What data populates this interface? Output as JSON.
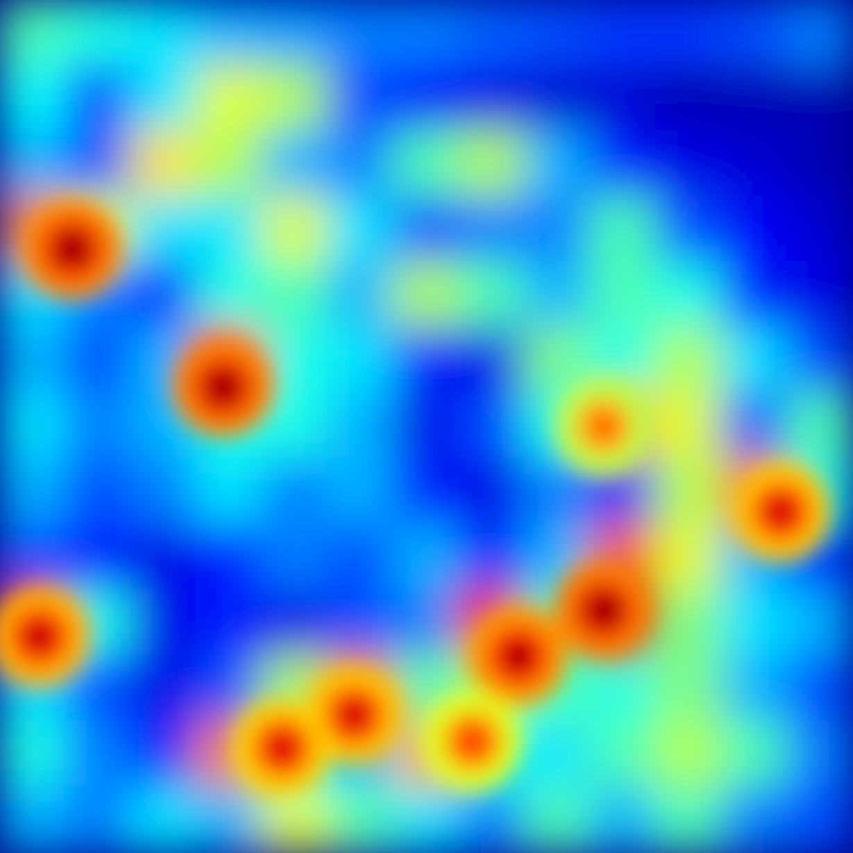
{
  "chart_data": {
    "type": "heatmap",
    "colormap": "jet",
    "vmin": 0.0,
    "vmax": 1.0,
    "rows": 13,
    "cols": 13,
    "interpolation": "bilinear",
    "grid": false,
    "legend": "none",
    "values": [
      [
        0.45,
        0.4,
        0.35,
        0.3,
        0.28,
        0.25,
        0.25,
        0.22,
        0.2,
        0.18,
        0.18,
        0.2,
        0.25
      ],
      [
        0.38,
        0.2,
        0.35,
        0.6,
        0.55,
        0.2,
        0.12,
        0.1,
        0.08,
        0.08,
        0.05,
        0.05,
        0.05
      ],
      [
        0.3,
        0.2,
        0.65,
        0.55,
        0.3,
        0.25,
        0.45,
        0.55,
        0.3,
        0.15,
        0.1,
        0.08,
        0.05
      ],
      [
        0.75,
        0.6,
        0.35,
        0.35,
        0.6,
        0.35,
        0.2,
        0.25,
        0.25,
        0.45,
        0.2,
        0.12,
        0.08
      ],
      [
        0.35,
        0.25,
        0.15,
        0.4,
        0.45,
        0.3,
        0.55,
        0.45,
        0.3,
        0.45,
        0.4,
        0.15,
        0.1
      ],
      [
        0.3,
        0.2,
        0.3,
        0.85,
        0.4,
        0.35,
        0.15,
        0.1,
        0.5,
        0.4,
        0.55,
        0.35,
        0.2
      ],
      [
        0.35,
        0.25,
        0.3,
        0.4,
        0.4,
        0.3,
        0.1,
        0.2,
        0.4,
        0.7,
        0.6,
        0.2,
        0.45
      ],
      [
        0.3,
        0.2,
        0.25,
        0.35,
        0.25,
        0.3,
        0.15,
        0.1,
        0.25,
        0.15,
        0.55,
        0.75,
        0.4
      ],
      [
        0.2,
        0.15,
        0.1,
        0.15,
        0.25,
        0.2,
        0.3,
        0.15,
        0.3,
        0.8,
        0.6,
        0.3,
        0.15
      ],
      [
        0.8,
        0.4,
        0.1,
        0.15,
        0.1,
        0.2,
        0.25,
        0.85,
        0.45,
        0.95,
        0.5,
        0.35,
        0.3
      ],
      [
        0.35,
        0.2,
        0.1,
        0.2,
        0.55,
        0.75,
        0.45,
        0.55,
        0.45,
        0.4,
        0.5,
        0.3,
        0.2
      ],
      [
        0.4,
        0.25,
        0.15,
        0.75,
        0.4,
        0.3,
        0.7,
        0.4,
        0.35,
        0.45,
        0.55,
        0.45,
        0.25
      ],
      [
        0.3,
        0.25,
        0.35,
        0.3,
        0.6,
        0.45,
        0.35,
        0.25,
        0.45,
        0.3,
        0.45,
        0.25,
        0.2
      ]
    ],
    "hotspots": [
      {
        "row": 3.3,
        "col": 0.6,
        "value": 1.0
      },
      {
        "row": 5.4,
        "col": 2.9,
        "value": 1.0
      },
      {
        "row": 8.8,
        "col": 8.7,
        "value": 1.0
      },
      {
        "row": 9.5,
        "col": 7.4,
        "value": 0.98
      },
      {
        "row": 9.2,
        "col": 0.1,
        "value": 0.95
      },
      {
        "row": 10.4,
        "col": 4.9,
        "value": 0.93
      },
      {
        "row": 7.3,
        "col": 11.4,
        "value": 0.93
      },
      {
        "row": 10.9,
        "col": 3.8,
        "value": 0.92
      },
      {
        "row": 10.8,
        "col": 6.7,
        "value": 0.85
      },
      {
        "row": 6.0,
        "col": 8.7,
        "value": 0.8
      }
    ]
  }
}
